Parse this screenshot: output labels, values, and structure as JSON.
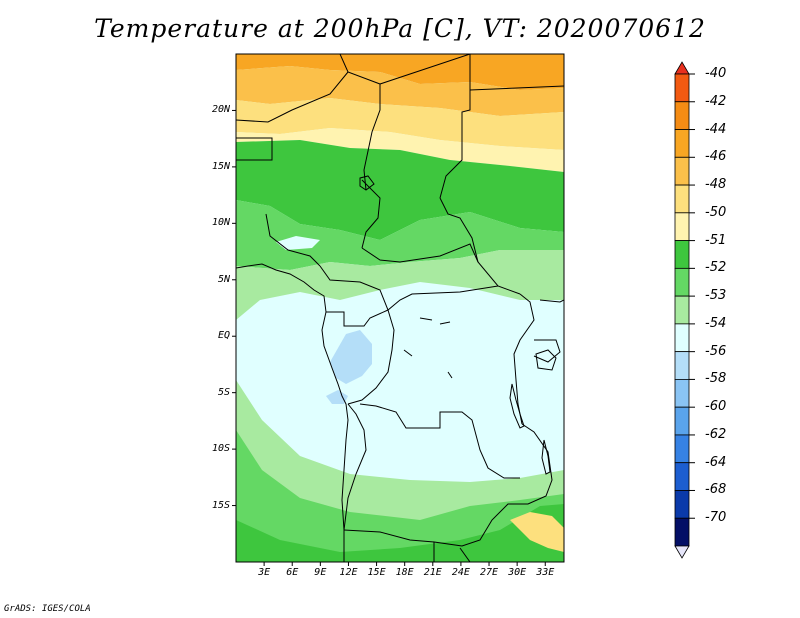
{
  "title": "Temperature at 200hPa [C], VT: 2020070612",
  "credit": "GrADS: IGES/COLA",
  "map": {
    "region": "Central Africa",
    "lat_range": [
      -20,
      25
    ],
    "lon_range": [
      0,
      35
    ],
    "lat_labels": [
      "20N",
      "15N",
      "10N",
      "5N",
      "EQ",
      "5S",
      "10S",
      "15S"
    ],
    "lon_labels": [
      "3E",
      "6E",
      "9E",
      "12E",
      "15E",
      "18E",
      "21E",
      "24E",
      "27E",
      "30E",
      "33E"
    ],
    "field": "temperature",
    "units": "C",
    "level": "200hPa"
  },
  "colorbar": {
    "levels": [
      "-40",
      "-42",
      "-44",
      "-46",
      "-48",
      "-50",
      "-51",
      "-52",
      "-53",
      "-54",
      "-56",
      "-58",
      "-60",
      "-62",
      "-64",
      "-68",
      "-70"
    ],
    "colors": [
      "#e8301e",
      "#f25a12",
      "#f58c14",
      "#f8a623",
      "#fbc04a",
      "#fde07e",
      "#fff3b0",
      "#3ec63e",
      "#64d864",
      "#a8eaa0",
      "#e0ffff",
      "#b4def8",
      "#8ac4f4",
      "#5aa4ec",
      "#3682e4",
      "#1c5ed0",
      "#0a3aaa",
      "#030f66",
      "#e6e6fa"
    ]
  }
}
